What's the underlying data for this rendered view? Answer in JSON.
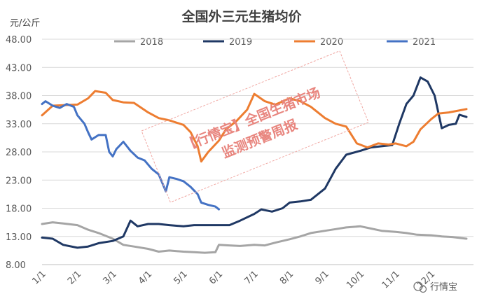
{
  "chart_data": {
    "type": "line",
    "title": "全国外三元生猪均价",
    "ylabel": "元/公斤",
    "ylim": [
      8,
      48
    ],
    "yticks": [
      "48.00",
      "43.00",
      "38.00",
      "33.00",
      "28.00",
      "23.00",
      "18.00",
      "13.00",
      "8.00"
    ],
    "xticks": [
      "1/1",
      "2/1",
      "3/1",
      "4/1",
      "5/1",
      "6/1",
      "7/1",
      "8/1",
      "9/1",
      "10/1",
      "11/1",
      "12/1"
    ],
    "legend_position": "top",
    "series": [
      {
        "name": "2018",
        "color": "#a5a5a5",
        "points": [
          [
            0,
            15.2
          ],
          [
            0.3,
            15.5
          ],
          [
            0.6,
            15.3
          ],
          [
            1,
            15.0
          ],
          [
            1.3,
            14.2
          ],
          [
            1.6,
            13.6
          ],
          [
            2,
            12.6
          ],
          [
            2.3,
            11.5
          ],
          [
            2.6,
            11.2
          ],
          [
            3,
            10.8
          ],
          [
            3.3,
            10.3
          ],
          [
            3.6,
            10.5
          ],
          [
            4,
            10.3
          ],
          [
            4.3,
            10.2
          ],
          [
            4.6,
            10.1
          ],
          [
            4.9,
            10.2
          ],
          [
            5.0,
            11.5
          ],
          [
            5.3,
            11.4
          ],
          [
            5.6,
            11.3
          ],
          [
            6,
            11.5
          ],
          [
            6.3,
            11.4
          ],
          [
            6.6,
            11.9
          ],
          [
            7,
            12.5
          ],
          [
            7.3,
            13.0
          ],
          [
            7.6,
            13.6
          ],
          [
            8,
            14.0
          ],
          [
            8.3,
            14.3
          ],
          [
            8.6,
            14.6
          ],
          [
            9,
            14.8
          ],
          [
            9.3,
            14.4
          ],
          [
            9.6,
            14.0
          ],
          [
            10,
            13.8
          ],
          [
            10.3,
            13.6
          ],
          [
            10.6,
            13.3
          ],
          [
            11,
            13.2
          ],
          [
            11.3,
            13.0
          ],
          [
            11.6,
            12.9
          ],
          [
            12,
            12.6
          ]
        ]
      },
      {
        "name": "2019",
        "color": "#1f3864",
        "points": [
          [
            0,
            12.8
          ],
          [
            0.3,
            12.6
          ],
          [
            0.6,
            11.5
          ],
          [
            1,
            11.0
          ],
          [
            1.3,
            11.2
          ],
          [
            1.6,
            11.8
          ],
          [
            2,
            12.2
          ],
          [
            2.3,
            13.0
          ],
          [
            2.5,
            15.8
          ],
          [
            2.7,
            14.8
          ],
          [
            3,
            15.2
          ],
          [
            3.3,
            15.2
          ],
          [
            3.6,
            15.0
          ],
          [
            4,
            14.8
          ],
          [
            4.3,
            15.0
          ],
          [
            4.6,
            15.0
          ],
          [
            5,
            15.0
          ],
          [
            5.3,
            15.0
          ],
          [
            5.6,
            15.8
          ],
          [
            6,
            17.0
          ],
          [
            6.2,
            17.8
          ],
          [
            6.5,
            17.4
          ],
          [
            6.8,
            18.0
          ],
          [
            7,
            19.0
          ],
          [
            7.3,
            19.2
          ],
          [
            7.6,
            19.5
          ],
          [
            8,
            21.5
          ],
          [
            8.3,
            25.0
          ],
          [
            8.6,
            27.5
          ],
          [
            9,
            28.2
          ],
          [
            9.3,
            28.8
          ],
          [
            9.6,
            29.0
          ],
          [
            9.9,
            29.2
          ],
          [
            10.1,
            33.0
          ],
          [
            10.3,
            36.5
          ],
          [
            10.5,
            38.0
          ],
          [
            10.7,
            41.2
          ],
          [
            10.9,
            40.5
          ],
          [
            11.1,
            38.0
          ],
          [
            11.3,
            32.2
          ],
          [
            11.5,
            32.8
          ],
          [
            11.7,
            33.0
          ],
          [
            11.8,
            34.6
          ],
          [
            12,
            34.2
          ]
        ]
      },
      {
        "name": "2020",
        "color": "#ed7d31",
        "points": [
          [
            0,
            34.5
          ],
          [
            0.3,
            36.2
          ],
          [
            0.6,
            36.3
          ],
          [
            1,
            36.4
          ],
          [
            1.3,
            37.5
          ],
          [
            1.5,
            38.8
          ],
          [
            1.8,
            38.5
          ],
          [
            2,
            37.2
          ],
          [
            2.3,
            36.8
          ],
          [
            2.6,
            36.7
          ],
          [
            3,
            35.0
          ],
          [
            3.3,
            34.0
          ],
          [
            3.6,
            33.6
          ],
          [
            4,
            32.8
          ],
          [
            4.2,
            31.5
          ],
          [
            4.4,
            29.0
          ],
          [
            4.5,
            26.3
          ],
          [
            4.7,
            28.0
          ],
          [
            5,
            30.0
          ],
          [
            5.2,
            32.0
          ],
          [
            5.5,
            33.5
          ],
          [
            5.8,
            35.5
          ],
          [
            6,
            38.3
          ],
          [
            6.3,
            37.0
          ],
          [
            6.6,
            36.4
          ],
          [
            7,
            37.5
          ],
          [
            7.3,
            37.0
          ],
          [
            7.6,
            36.0
          ],
          [
            8,
            34.0
          ],
          [
            8.3,
            33.0
          ],
          [
            8.6,
            32.5
          ],
          [
            8.9,
            29.5
          ],
          [
            9.2,
            28.8
          ],
          [
            9.5,
            29.5
          ],
          [
            9.8,
            29.3
          ],
          [
            10,
            29.5
          ],
          [
            10.3,
            29.0
          ],
          [
            10.5,
            29.8
          ],
          [
            10.7,
            32.0
          ],
          [
            11,
            33.8
          ],
          [
            11.2,
            34.8
          ],
          [
            11.5,
            35.0
          ],
          [
            12,
            35.6
          ]
        ]
      },
      {
        "name": "2021",
        "color": "#4472c4",
        "points": [
          [
            0,
            36.5
          ],
          [
            0.1,
            37.0
          ],
          [
            0.3,
            36.2
          ],
          [
            0.5,
            35.8
          ],
          [
            0.7,
            36.5
          ],
          [
            0.9,
            36.0
          ],
          [
            1,
            34.5
          ],
          [
            1.2,
            33.0
          ],
          [
            1.3,
            31.5
          ],
          [
            1.4,
            30.2
          ],
          [
            1.6,
            31.0
          ],
          [
            1.8,
            31.0
          ],
          [
            1.9,
            28.0
          ],
          [
            2,
            27.2
          ],
          [
            2.1,
            28.5
          ],
          [
            2.3,
            29.8
          ],
          [
            2.5,
            28.2
          ],
          [
            2.7,
            27.0
          ],
          [
            2.9,
            26.5
          ],
          [
            3.1,
            25.0
          ],
          [
            3.3,
            24.0
          ],
          [
            3.5,
            21.0
          ],
          [
            3.6,
            23.5
          ],
          [
            3.8,
            23.2
          ],
          [
            4,
            22.8
          ],
          [
            4.2,
            21.8
          ],
          [
            4.4,
            20.5
          ],
          [
            4.5,
            19.0
          ],
          [
            4.7,
            18.6
          ],
          [
            4.9,
            18.3
          ],
          [
            5.0,
            17.8
          ]
        ]
      }
    ],
    "annotations": [
      "【行情宝】全国生猪市场",
      "监测预警周报"
    ],
    "watermark": "行情宝"
  }
}
